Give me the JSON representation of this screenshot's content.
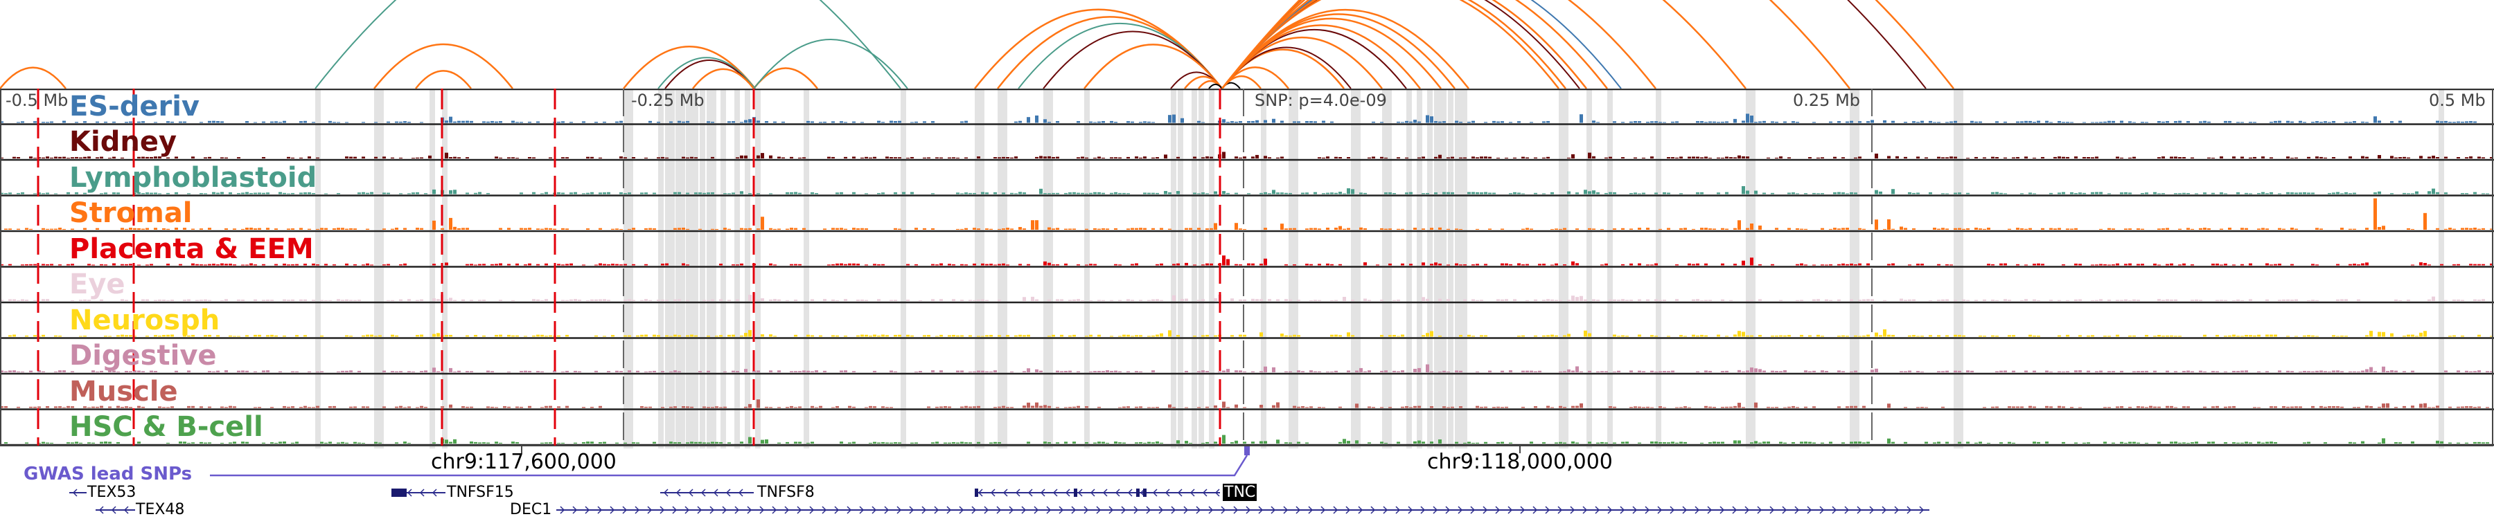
{
  "axis": {
    "left": "-0.5 Mb",
    "left_mid": "-0.25 Mb",
    "snp": "SNP: p=4.0e-09",
    "right_mid": "0.25 Mb",
    "right": "0.5 Mb"
  },
  "tracks": [
    {
      "label": "ES-deriv",
      "color": "#3f78b0"
    },
    {
      "label": "Kidney",
      "color": "#6b0a0a"
    },
    {
      "label": "Lymphoblastoid",
      "color": "#4a9c8a"
    },
    {
      "label": "Stromal",
      "color": "#ff7514"
    },
    {
      "label": "Placenta & EEM",
      "color": "#e3000b"
    },
    {
      "label": "Eye",
      "color": "#ebd0dc"
    },
    {
      "label": "Neurosph",
      "color": "#ffd91a"
    },
    {
      "label": "Digestive",
      "color": "#c98aa8"
    },
    {
      "label": "Muscle",
      "color": "#c0605a"
    },
    {
      "label": "HSC & B-cell",
      "color": "#4ea24e"
    }
  ],
  "coordinates": {
    "tick1": "chr9:117,600,000",
    "tick2": "chr9:118,000,000"
  },
  "gwas": {
    "label": "GWAS lead SNPs",
    "color": "#6a5acd"
  },
  "genes": [
    {
      "name": "TEX53"
    },
    {
      "name": "TEX48"
    },
    {
      "name": "TNFSF15"
    },
    {
      "name": "TNFSF8"
    },
    {
      "name": "DEC1"
    },
    {
      "name": "TNC",
      "highlighted": true
    }
  ]
}
